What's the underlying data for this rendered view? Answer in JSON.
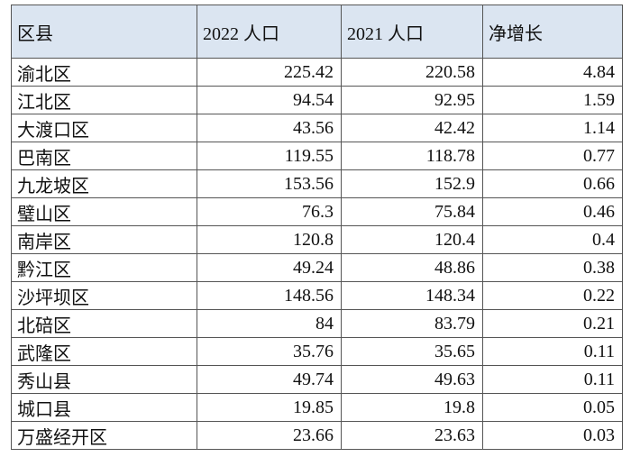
{
  "table": {
    "header": [
      "区县",
      "2022 人口",
      "2021 人口",
      "净增长"
    ],
    "rows": [
      [
        "渝北区",
        225.42,
        220.58,
        4.84
      ],
      [
        "江北区",
        94.54,
        92.95,
        1.59
      ],
      [
        "大渡口区",
        43.56,
        42.42,
        1.14
      ],
      [
        "巴南区",
        119.55,
        118.78,
        0.77
      ],
      [
        "九龙坡区",
        153.56,
        152.9,
        0.66
      ],
      [
        "璧山区",
        76.3,
        75.84,
        0.46
      ],
      [
        "南岸区",
        120.8,
        120.4,
        0.4
      ],
      [
        "黔江区",
        49.24,
        48.86,
        0.38
      ],
      [
        "沙坪坝区",
        148.56,
        148.34,
        0.22
      ],
      [
        "北碚区",
        84,
        83.79,
        0.21
      ],
      [
        "武隆区",
        35.76,
        35.65,
        0.11
      ],
      [
        "秀山县",
        49.74,
        49.63,
        0.11
      ],
      [
        "城口县",
        19.85,
        19.8,
        0.05
      ],
      [
        "万盛经开区",
        23.66,
        23.63,
        0.03
      ]
    ]
  }
}
